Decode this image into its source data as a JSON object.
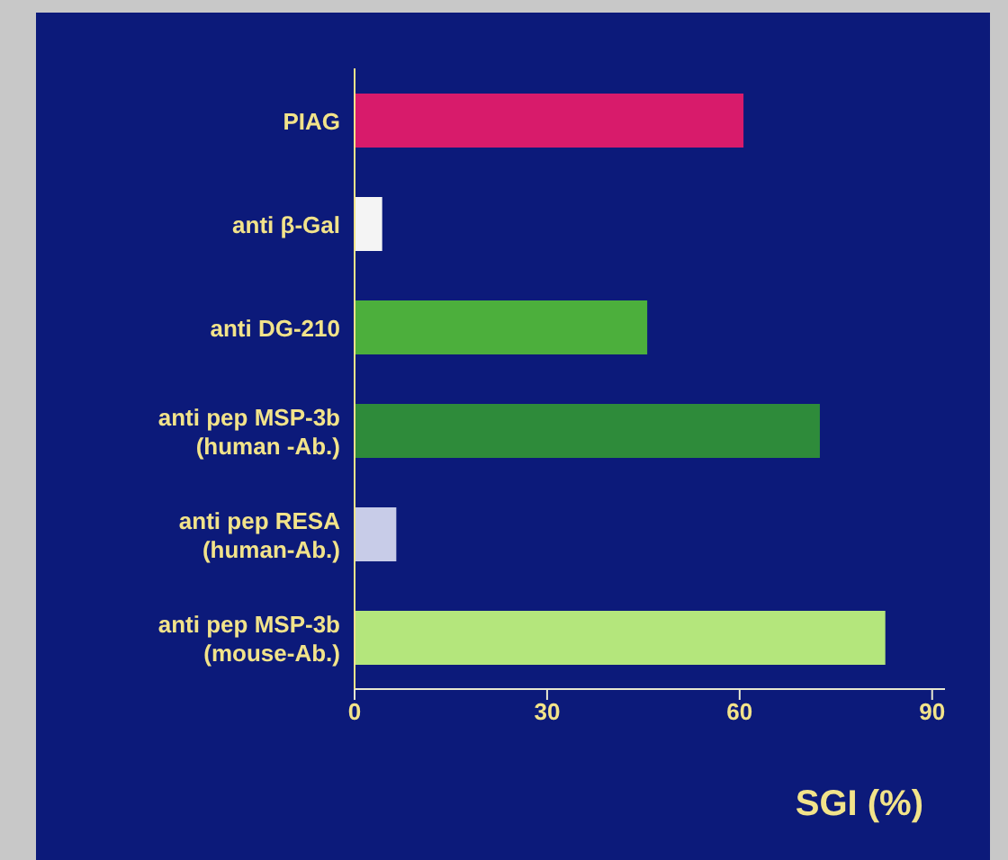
{
  "chart_data": {
    "type": "bar",
    "orientation": "horizontal",
    "xlabel": "SGI (%)",
    "categories": [
      "PIAG",
      "anti β-Gal",
      "anti DG-210",
      "anti pep MSP-3b\n(human -Ab.)",
      "anti pep RESA\n(human-Ab.)",
      "anti pep MSP-3b\n(mouse-Ab.)"
    ],
    "values": [
      60.6,
      4.3,
      45.6,
      72.5,
      6.5,
      82.7
    ],
    "colors": [
      "#d81b6b",
      "#f4f4f4",
      "#4caf3c",
      "#2e8b3a",
      "#c8cce8",
      "#b4e67c"
    ],
    "xlim": [
      0,
      92
    ],
    "xticks": [
      0,
      30,
      60,
      90
    ],
    "grid": false,
    "legend": false
  }
}
